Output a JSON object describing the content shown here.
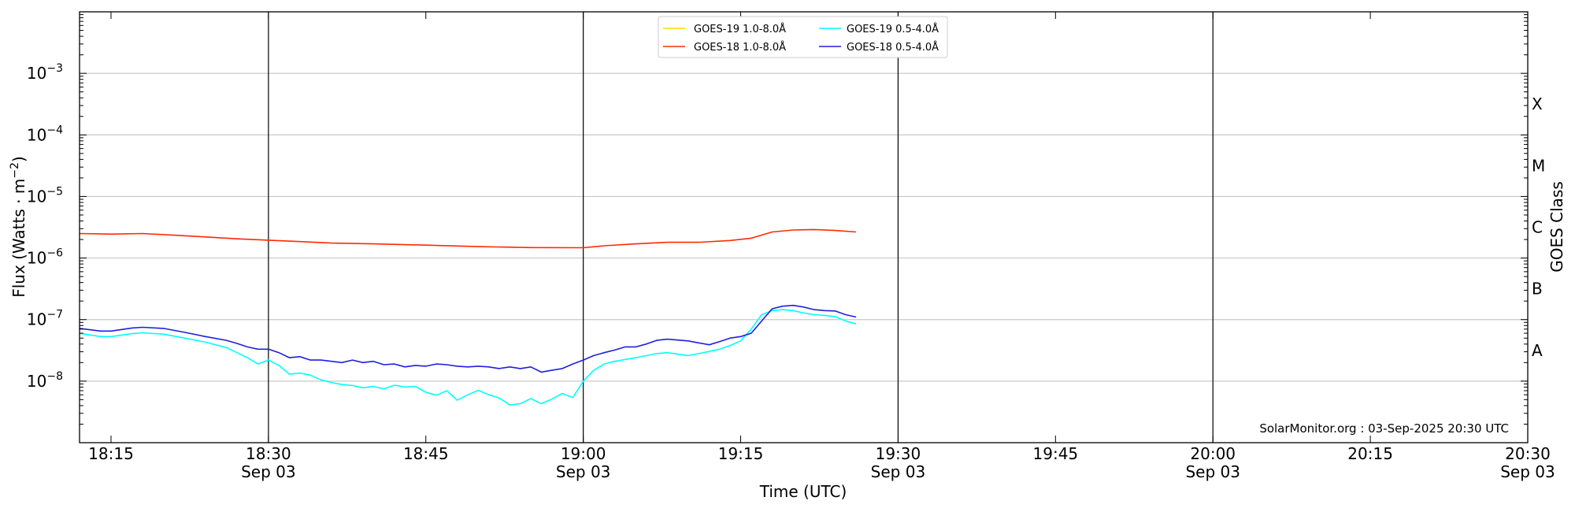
{
  "chart_data": {
    "type": "line",
    "xlabel": "Time (UTC)",
    "ylabel_main": "Flux (Watts · m",
    "ylabel_sup": "−2",
    "ylabel_close": ")",
    "y2label": "GOES Class",
    "yscale": "log",
    "xlim": [
      "18:12",
      "20:30"
    ],
    "ylim": [
      1e-09,
      0.01
    ],
    "grid": "horizontal",
    "legend_position": "top-center",
    "credit": "SolarMonitor.org : 03-Sep-2025 20:30 UTC",
    "x_ticks": [
      {
        "time": "18:15",
        "label": "18:15",
        "date": ""
      },
      {
        "time": "18:30",
        "label": "18:30",
        "date": "Sep 03"
      },
      {
        "time": "18:45",
        "label": "18:45",
        "date": ""
      },
      {
        "time": "19:00",
        "label": "19:00",
        "date": "Sep 03"
      },
      {
        "time": "19:15",
        "label": "19:15",
        "date": ""
      },
      {
        "time": "19:30",
        "label": "19:30",
        "date": "Sep 03"
      },
      {
        "time": "19:45",
        "label": "19:45",
        "date": ""
      },
      {
        "time": "20:00",
        "label": "20:00",
        "date": "Sep 03"
      },
      {
        "time": "20:15",
        "label": "20:15",
        "date": ""
      },
      {
        "time": "20:30",
        "label": "20:30",
        "date": "Sep 03"
      }
    ],
    "vlines": [
      "18:30",
      "19:00",
      "19:30",
      "20:00"
    ],
    "y_ticks": [
      {
        "value": 1e-08,
        "base": "10",
        "exp": "−8"
      },
      {
        "value": 1e-07,
        "base": "10",
        "exp": "−7"
      },
      {
        "value": 1e-06,
        "base": "10",
        "exp": "−6"
      },
      {
        "value": 1e-05,
        "base": "10",
        "exp": "−5"
      },
      {
        "value": 0.0001,
        "base": "10",
        "exp": "−4"
      },
      {
        "value": 0.001,
        "base": "10",
        "exp": "−3"
      }
    ],
    "goes_classes": [
      {
        "label": "A",
        "value": 3.16e-08
      },
      {
        "label": "B",
        "value": 3.16e-07
      },
      {
        "label": "C",
        "value": 3.16e-06
      },
      {
        "label": "M",
        "value": 3.16e-05
      },
      {
        "label": "X",
        "value": 0.000316
      }
    ],
    "series": [
      {
        "name": "GOES-19 1.0-8.0Å",
        "color": "#ffd700",
        "points": []
      },
      {
        "name": "GOES-19 0.5-4.0Å",
        "color": "#00ffff",
        "points": [
          [
            "18:12",
            6e-08
          ],
          [
            "18:14",
            5.3e-08
          ],
          [
            "18:15",
            5.3e-08
          ],
          [
            "18:17",
            5.9e-08
          ],
          [
            "18:18",
            6.1e-08
          ],
          [
            "18:20",
            5.8e-08
          ],
          [
            "18:22",
            5e-08
          ],
          [
            "18:24",
            4.3e-08
          ],
          [
            "18:26",
            3.5e-08
          ],
          [
            "18:27",
            2.9e-08
          ],
          [
            "18:28",
            2.4e-08
          ],
          [
            "18:29",
            1.9e-08
          ],
          [
            "18:30",
            2.2e-08
          ],
          [
            "18:31",
            1.8e-08
          ],
          [
            "18:32",
            1.3e-08
          ],
          [
            "18:33",
            1.35e-08
          ],
          [
            "18:34",
            1.25e-08
          ],
          [
            "18:35",
            1.05e-08
          ],
          [
            "18:36",
            9.5e-09
          ],
          [
            "18:37",
            8.8e-09
          ],
          [
            "18:38",
            8.5e-09
          ],
          [
            "18:39",
            7.8e-09
          ],
          [
            "18:40",
            8.2e-09
          ],
          [
            "18:41",
            7.5e-09
          ],
          [
            "18:42",
            8.6e-09
          ],
          [
            "18:43",
            8e-09
          ],
          [
            "18:44",
            8.2e-09
          ],
          [
            "18:45",
            6.6e-09
          ],
          [
            "18:46",
            5.9e-09
          ],
          [
            "18:47",
            7e-09
          ],
          [
            "18:48",
            4.9e-09
          ],
          [
            "18:49",
            6e-09
          ],
          [
            "18:50",
            7.1e-09
          ],
          [
            "18:51",
            6e-09
          ],
          [
            "18:52",
            5.3e-09
          ],
          [
            "18:53",
            4.1e-09
          ],
          [
            "18:54",
            4.3e-09
          ],
          [
            "18:55",
            5.2e-09
          ],
          [
            "18:56",
            4.3e-09
          ],
          [
            "18:57",
            5.1e-09
          ],
          [
            "18:58",
            6.3e-09
          ],
          [
            "18:59",
            5.4e-09
          ],
          [
            "19:00",
            1e-08
          ],
          [
            "19:01",
            1.5e-08
          ],
          [
            "19:02",
            1.9e-08
          ],
          [
            "19:03",
            2.1e-08
          ],
          [
            "19:05",
            2.4e-08
          ],
          [
            "19:07",
            2.8e-08
          ],
          [
            "19:08",
            2.9e-08
          ],
          [
            "19:10",
            2.6e-08
          ],
          [
            "19:11",
            2.8e-08
          ],
          [
            "19:13",
            3.3e-08
          ],
          [
            "19:14",
            3.8e-08
          ],
          [
            "19:15",
            4.5e-08
          ],
          [
            "19:16",
            7e-08
          ],
          [
            "19:17",
            1.2e-07
          ],
          [
            "19:18",
            1.4e-07
          ],
          [
            "19:19",
            1.45e-07
          ],
          [
            "19:20",
            1.4e-07
          ],
          [
            "19:21",
            1.28e-07
          ],
          [
            "19:22",
            1.2e-07
          ],
          [
            "19:23",
            1.17e-07
          ],
          [
            "19:24",
            1.12e-07
          ],
          [
            "19:25",
            9.5e-08
          ],
          [
            "19:26",
            8.5e-08
          ]
        ]
      },
      {
        "name": "GOES-18 1.0-8.0Å",
        "color": "#ff2b00",
        "points": [
          [
            "18:12",
            2.5e-06
          ],
          [
            "18:15",
            2.45e-06
          ],
          [
            "18:18",
            2.5e-06
          ],
          [
            "18:21",
            2.35e-06
          ],
          [
            "18:24",
            2.2e-06
          ],
          [
            "18:27",
            2.05e-06
          ],
          [
            "18:30",
            1.95e-06
          ],
          [
            "18:33",
            1.85e-06
          ],
          [
            "18:36",
            1.75e-06
          ],
          [
            "18:40",
            1.7e-06
          ],
          [
            "18:45",
            1.62e-06
          ],
          [
            "18:50",
            1.53e-06
          ],
          [
            "18:55",
            1.48e-06
          ],
          [
            "19:00",
            1.47e-06
          ],
          [
            "19:02",
            1.58e-06
          ],
          [
            "19:05",
            1.7e-06
          ],
          [
            "19:08",
            1.8e-06
          ],
          [
            "19:11",
            1.8e-06
          ],
          [
            "19:14",
            1.93e-06
          ],
          [
            "19:16",
            2.1e-06
          ],
          [
            "19:18",
            2.65e-06
          ],
          [
            "19:20",
            2.85e-06
          ],
          [
            "19:22",
            2.9e-06
          ],
          [
            "19:24",
            2.8e-06
          ],
          [
            "19:26",
            2.65e-06
          ]
        ]
      },
      {
        "name": "GOES-18 0.5-4.0Å",
        "color": "#1f1fe0",
        "points": [
          [
            "18:12",
            7.2e-08
          ],
          [
            "18:14",
            6.5e-08
          ],
          [
            "18:15",
            6.5e-08
          ],
          [
            "18:17",
            7.3e-08
          ],
          [
            "18:18",
            7.5e-08
          ],
          [
            "18:20",
            7.2e-08
          ],
          [
            "18:22",
            6.2e-08
          ],
          [
            "18:24",
            5.3e-08
          ],
          [
            "18:26",
            4.6e-08
          ],
          [
            "18:27",
            4.1e-08
          ],
          [
            "18:28",
            3.6e-08
          ],
          [
            "18:29",
            3.3e-08
          ],
          [
            "18:30",
            3.3e-08
          ],
          [
            "18:31",
            2.9e-08
          ],
          [
            "18:32",
            2.4e-08
          ],
          [
            "18:33",
            2.5e-08
          ],
          [
            "18:34",
            2.2e-08
          ],
          [
            "18:35",
            2.2e-08
          ],
          [
            "18:36",
            2.1e-08
          ],
          [
            "18:37",
            2e-08
          ],
          [
            "18:38",
            2.2e-08
          ],
          [
            "18:39",
            2e-08
          ],
          [
            "18:40",
            2.1e-08
          ],
          [
            "18:41",
            1.85e-08
          ],
          [
            "18:42",
            1.9e-08
          ],
          [
            "18:43",
            1.7e-08
          ],
          [
            "18:44",
            1.8e-08
          ],
          [
            "18:45",
            1.75e-08
          ],
          [
            "18:46",
            1.9e-08
          ],
          [
            "18:47",
            1.85e-08
          ],
          [
            "18:48",
            1.75e-08
          ],
          [
            "18:49",
            1.7e-08
          ],
          [
            "18:50",
            1.75e-08
          ],
          [
            "18:51",
            1.7e-08
          ],
          [
            "18:52",
            1.6e-08
          ],
          [
            "18:53",
            1.7e-08
          ],
          [
            "18:54",
            1.6e-08
          ],
          [
            "18:55",
            1.7e-08
          ],
          [
            "18:56",
            1.4e-08
          ],
          [
            "18:57",
            1.5e-08
          ],
          [
            "18:58",
            1.6e-08
          ],
          [
            "18:59",
            1.9e-08
          ],
          [
            "19:00",
            2.2e-08
          ],
          [
            "19:01",
            2.6e-08
          ],
          [
            "19:02",
            2.9e-08
          ],
          [
            "19:03",
            3.2e-08
          ],
          [
            "19:04",
            3.6e-08
          ],
          [
            "19:05",
            3.6e-08
          ],
          [
            "19:06",
            4e-08
          ],
          [
            "19:07",
            4.6e-08
          ],
          [
            "19:08",
            4.8e-08
          ],
          [
            "19:10",
            4.5e-08
          ],
          [
            "19:12",
            3.9e-08
          ],
          [
            "19:13",
            4.4e-08
          ],
          [
            "19:14",
            5e-08
          ],
          [
            "19:15",
            5.3e-08
          ],
          [
            "19:16",
            6e-08
          ],
          [
            "19:17",
            9.5e-08
          ],
          [
            "19:18",
            1.5e-07
          ],
          [
            "19:19",
            1.65e-07
          ],
          [
            "19:20",
            1.7e-07
          ],
          [
            "19:21",
            1.6e-07
          ],
          [
            "19:22",
            1.45e-07
          ],
          [
            "19:23",
            1.4e-07
          ],
          [
            "19:24",
            1.38e-07
          ],
          [
            "19:25",
            1.2e-07
          ],
          [
            "19:26",
            1.1e-07
          ]
        ]
      }
    ]
  }
}
